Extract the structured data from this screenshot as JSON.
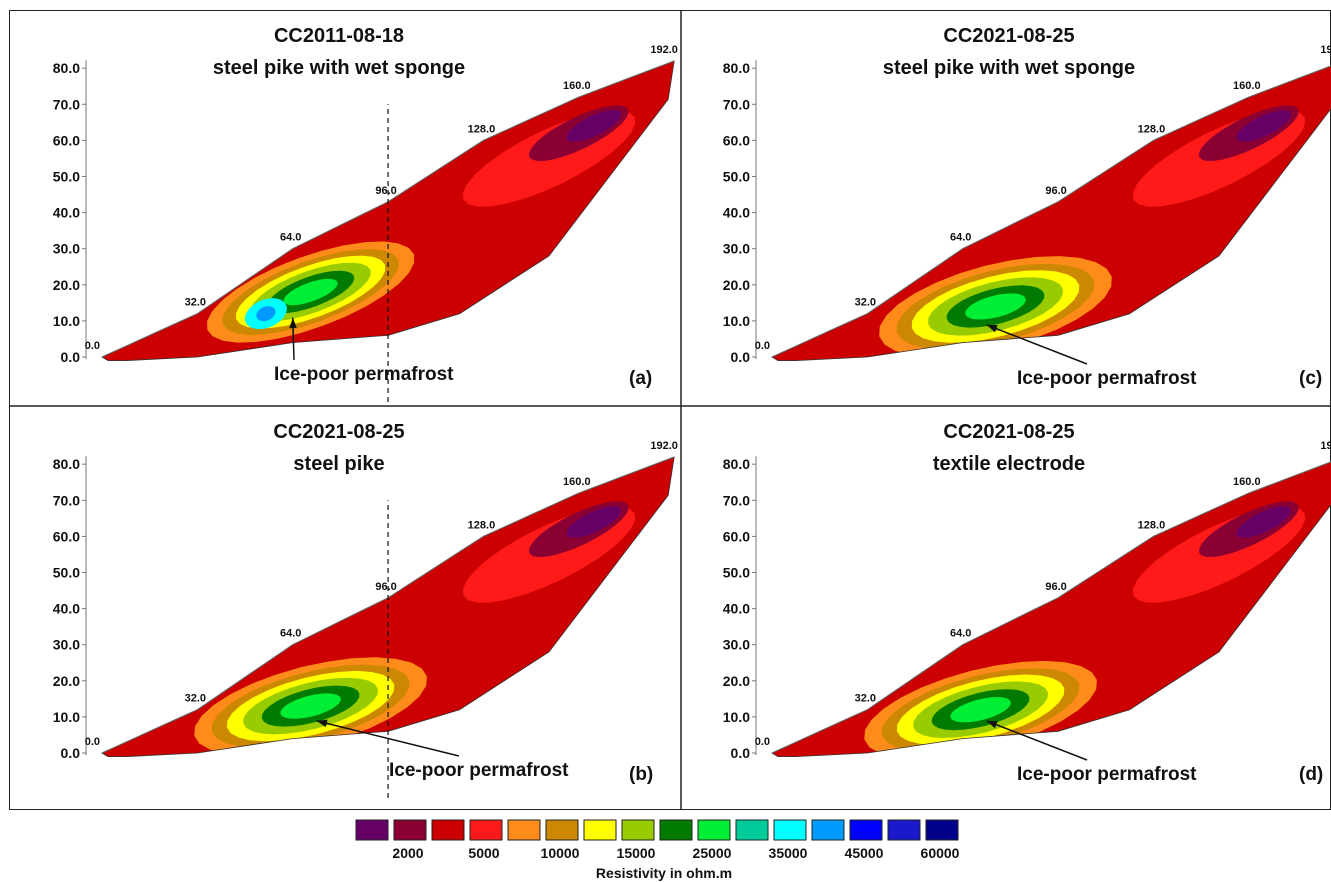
{
  "chart_data": {
    "type": "heatmap",
    "panels": [
      {
        "id": "a",
        "title": "CC2011-08-18",
        "subtitle": "steel pike with wet sponge",
        "panel_label": "(a)",
        "annotation": "Ice-poor permafrost",
        "dashed_line_x": 96.0
      },
      {
        "id": "c",
        "title": "CC2021-08-25",
        "subtitle": "steel pike with wet sponge",
        "panel_label": "(c)",
        "annotation": "Ice-poor permafrost",
        "dashed_line_x": null
      },
      {
        "id": "b",
        "title": "CC2021-08-25",
        "subtitle": "steel pike",
        "panel_label": "(b)",
        "annotation": "Ice-poor permafrost",
        "dashed_line_x": 96.0
      },
      {
        "id": "d",
        "title": "CC2021-08-25",
        "subtitle": "textile electrode",
        "panel_label": "(d)",
        "annotation": "Ice-poor permafrost",
        "dashed_line_x": null
      }
    ],
    "y_ticks": [
      "0.0",
      "10.0",
      "20.0",
      "30.0",
      "40.0",
      "50.0",
      "60.0",
      "70.0",
      "80.0"
    ],
    "distance_markers": [
      "0.0",
      "32.0",
      "64.0",
      "96.0",
      "128.0",
      "160.0",
      "192.0"
    ],
    "ylim": [
      0,
      80
    ],
    "xlim": [
      0,
      192
    ],
    "legend": {
      "title": "Resistivity in ohm.m",
      "colors": [
        "#660066",
        "#8b0033",
        "#cc0000",
        "#ff1a1a",
        "#ff8c1a",
        "#cc8800",
        "#ffff00",
        "#99cc00",
        "#007a00",
        "#00ee33",
        "#00cc99",
        "#00ffff",
        "#0099ff",
        "#0000ff",
        "#1a1acc",
        "#00008b"
      ],
      "labels": [
        "2000",
        "5000",
        "10000",
        "15000",
        "25000",
        "35000",
        "45000",
        "60000"
      ]
    }
  }
}
